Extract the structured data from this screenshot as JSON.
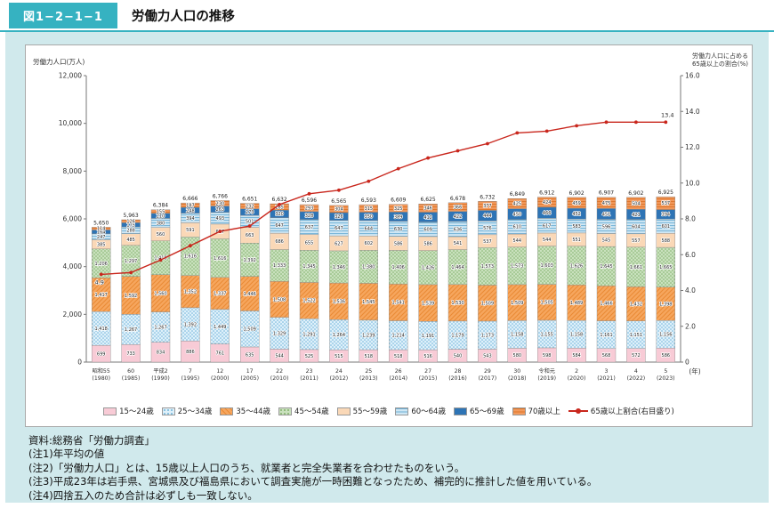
{
  "header": {
    "figure_no": "図1−2−1−1",
    "title": "労働力人口の推移"
  },
  "chart_data": {
    "type": "bar",
    "subtype": "stacked-bars-with-line",
    "left_axis": {
      "label": "労働力人口(万人)",
      "min": 0,
      "max": 12000,
      "ticks": [
        0,
        2000,
        4000,
        6000,
        8000,
        10000,
        12000
      ]
    },
    "right_axis": {
      "label_line1": "労働力人口に占める",
      "label_line2": "65歳以上の割合(%)",
      "min": 0,
      "max": 16,
      "ticks": [
        0,
        2,
        4,
        6,
        8,
        10,
        12,
        14,
        16
      ]
    },
    "x_unit_label": "(年)",
    "categories_era": [
      "昭和55",
      "60",
      "平成2",
      "7",
      "12",
      "17",
      "22",
      "23",
      "24",
      "25",
      "26",
      "27",
      "28",
      "29",
      "30",
      "令和元",
      "2",
      "3",
      "4",
      "5"
    ],
    "categories_year": [
      "(1980)",
      "(1985)",
      "(1990)",
      "(1995)",
      "(2000)",
      "(2005)",
      "(2010)",
      "(2011)",
      "(2012)",
      "(2013)",
      "(2014)",
      "(2015)",
      "(2016)",
      "(2017)",
      "(2018)",
      "(2019)",
      "(2020)",
      "(2021)",
      "(2022)",
      "(2023)"
    ],
    "totals": [
      5650,
      5963,
      6384,
      6666,
      6766,
      6651,
      6632,
      6596,
      6565,
      6593,
      6609,
      6625,
      6678,
      6732,
      6849,
      6912,
      6902,
      6907,
      6902,
      6925
    ],
    "series": [
      {
        "name": "15〜24歳",
        "pattern": "solid",
        "bg": "#f8cbd6",
        "fg": "#f8cbd6",
        "values": [
          699,
          733,
          834,
          886,
          761,
          635,
          544,
          525,
          515,
          518,
          518,
          516,
          540,
          543,
          580,
          598,
          584,
          568,
          572,
          586
        ]
      },
      {
        "name": "25〜34歳",
        "pattern": "dots",
        "bg": "#def0fa",
        "fg": "#6fb4d9",
        "values": [
          1418,
          1267,
          1267,
          1392,
          1449,
          1509,
          1329,
          1291,
          1264,
          1239,
          1214,
          1191,
          1179,
          1173,
          1158,
          1155,
          1158,
          1161,
          1151,
          1156
        ]
      },
      {
        "name": "35〜44歳",
        "pattern": "diag",
        "bg": "#f6a65e",
        "fg": "#ea8a35",
        "values": [
          1417,
          1592,
          1560,
          1352,
          1337,
          1446,
          1508,
          1522,
          1536,
          1545,
          1541,
          1539,
          1530,
          1509,
          1509,
          1505,
          1489,
          1466,
          1432,
          1398
        ]
      },
      {
        "name": "45〜54歳",
        "pattern": "dots",
        "bg": "#c9e1bd",
        "fg": "#82b06c",
        "values": [
          1206,
          1297,
          1418,
          1616,
          1616,
          1392,
          1333,
          1345,
          1346,
          1380,
          1406,
          1426,
          1464,
          1573,
          1573,
          1603,
          1626,
          1645,
          1661,
          1665
        ]
      },
      {
        "name": "55〜59歳",
        "pattern": "solid",
        "bg": "#fad8b7",
        "fg": "#fad8b7",
        "values": [
          385,
          485,
          560,
          591,
          617,
          663,
          686,
          655,
          627,
          602,
          586,
          586,
          541,
          537,
          544,
          544,
          551,
          545,
          557,
          588
        ]
      },
      {
        "name": "60〜64歳",
        "pattern": "hlines",
        "bg": "#cfe7f4",
        "fg": "#6fb0d6",
        "values": [
          247,
          288,
          380,
          394,
          493,
          501,
          647,
          637,
          647,
          644,
          630,
          609,
          636,
          576,
          610,
          617,
          583,
          596,
          604,
          601
        ]
      },
      {
        "name": "65〜69歳",
        "pattern": "solid",
        "bg": "#2e74b5",
        "fg": "#2e74b5",
        "values": [
          164,
          175,
          210,
          248,
          263,
          273,
          320,
          328,
          326,
          350,
          389,
          412,
          422,
          444,
          450,
          466,
          452,
          451,
          421,
          394
        ]
      },
      {
        "name": "70歳以上",
        "pattern": "hlines",
        "bg": "#f29a5d",
        "fg": "#dd7428",
        "values": [
          114,
          126,
          155,
          187,
          230,
          232,
          265,
          293,
          304,
          315,
          325,
          346,
          366,
          377,
          425,
          424,
          459,
          475,
          504,
          537
        ]
      }
    ],
    "line": {
      "name": "65歳以上割合(右目盛り)",
      "color": "#c9271d",
      "values": [
        4.9,
        5.0,
        5.7,
        6.5,
        7.3,
        7.6,
        8.8,
        9.4,
        9.6,
        10.1,
        10.8,
        11.4,
        11.8,
        12.2,
        12.8,
        12.9,
        13.2,
        13.4,
        13.4,
        13.4
      ],
      "first_point_label": "4.9",
      "last_point_label": "13.4"
    }
  },
  "footer": {
    "source": "資料:総務省「労働力調査」",
    "notes": [
      "(注1)年平均の値",
      "(注2)「労働力人口」とは、15歳以上人口のうち、就業者と完全失業者を合わせたものをいう。",
      "(注3)平成23年は岩手県、宮城県及び福島県において調査実施が一時困難となったため、補完的に推計した値を用いている。",
      "(注4)四捨五入のため合計は必ずしも一致しない。"
    ]
  }
}
